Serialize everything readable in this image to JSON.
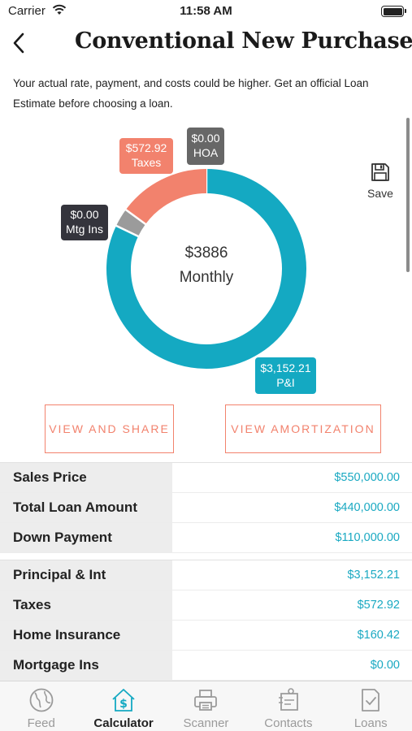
{
  "status_bar": {
    "carrier": "Carrier",
    "time": "11:58 AM"
  },
  "nav": {
    "title": "Conventional New Purchase",
    "back_icon": "chevron-left-icon"
  },
  "disclaimer": "Your actual rate, payment, and costs could be higher. Get an official Loan Estimate before choosing a loan.",
  "chart_data": {
    "type": "pie",
    "style": "donut",
    "center_amount": "$3886",
    "center_label": "Monthly",
    "slices": [
      {
        "label": "P&I",
        "display_value": "$3,152.21",
        "value": 3152.21,
        "color": "#14a9c2"
      },
      {
        "label": "Mtg Ins",
        "display_value": "$0.00",
        "value": 0,
        "color": "#9b9b9b"
      },
      {
        "label": "Taxes",
        "display_value": "$572.92",
        "value": 572.92,
        "color": "#f2826d"
      },
      {
        "label": "HOA",
        "display_value": "$0.00",
        "value": 0,
        "color": "#676767"
      }
    ]
  },
  "save": {
    "label": "Save",
    "icon": "floppy-disk-icon"
  },
  "buttons": {
    "share": "VIEW AND SHARE",
    "amortization": "VIEW AMORTIZATION"
  },
  "loan_table": [
    {
      "label": "Sales Price",
      "value": "$550,000.00"
    },
    {
      "label": "Total Loan Amount",
      "value": "$440,000.00"
    },
    {
      "label": "Down Payment",
      "value": "$110,000.00"
    }
  ],
  "payment_table": [
    {
      "label": "Principal & Int",
      "value": "$3,152.21"
    },
    {
      "label": "Taxes",
      "value": "$572.92"
    },
    {
      "label": "Home Insurance",
      "value": "$160.42"
    },
    {
      "label": "Mortgage Ins",
      "value": "$0.00"
    }
  ],
  "tabs": [
    {
      "label": "Feed",
      "icon": "globe-icon",
      "active": false
    },
    {
      "label": "Calculator",
      "icon": "house-dollar-icon",
      "active": true
    },
    {
      "label": "Scanner",
      "icon": "printer-icon",
      "active": false
    },
    {
      "label": "Contacts",
      "icon": "contact-card-icon",
      "active": false
    },
    {
      "label": "Loans",
      "icon": "document-check-icon",
      "active": false
    }
  ],
  "colors": {
    "accent": "#14a9c2",
    "coral": "#f2826d",
    "label_bg": "#ededed"
  }
}
